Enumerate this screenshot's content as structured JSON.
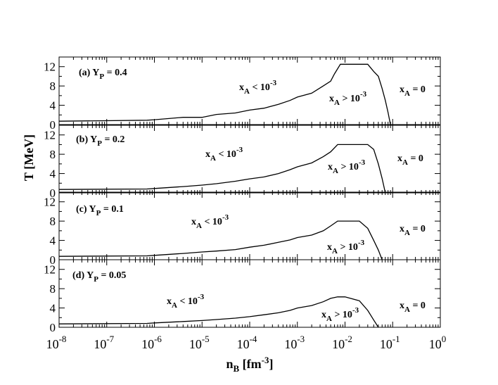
{
  "chart_data": {
    "type": "line",
    "xlabel": "n",
    "xlabel_sub": "B",
    "xlabel_unit": "[fm",
    "xlabel_unit_sup": "-3",
    "xlabel_unit_close": "]",
    "ylabel": "T [MeV]",
    "xscale": "log",
    "xlim": [
      1e-08,
      1
    ],
    "x_tick_base": "10",
    "x_tick_exponents": [
      "-8",
      "-7",
      "-6",
      "-5",
      "-4",
      "-3",
      "-2",
      "-1",
      "0"
    ],
    "line_color": "#000000",
    "panels": [
      {
        "label_prefix": "(a) Y",
        "label_sub": "P",
        "label_suffix": " = 0.4",
        "ylim": [
          0,
          14
        ],
        "yticks": [
          "0",
          "4",
          "8",
          "12"
        ],
        "annotations": {
          "low": {
            "main": "x",
            "sub": "A",
            "rel": " < 10",
            "sup": "-3"
          },
          "mid": {
            "main": "x",
            "sub": "A",
            "rel": " > 10",
            "sup": "-3"
          },
          "zero": {
            "main": "x",
            "sub": "A",
            "rel": " = 0",
            "sup": ""
          }
        },
        "series": {
          "x": [
            1e-08,
            7e-07,
            1e-06,
            4e-06,
            1e-05,
            2e-05,
            5e-05,
            0.0001,
            0.0002,
            0.0004,
            0.0007,
            0.001,
            0.002,
            0.0035,
            0.005,
            0.006,
            0.008,
            0.01,
            0.015,
            0.02,
            0.03,
            0.04,
            0.05,
            0.06,
            0.07,
            0.08,
            0.09
          ],
          "y": [
            0.7,
            0.9,
            1.0,
            1.5,
            1.5,
            2.1,
            2.4,
            3.0,
            3.4,
            4.2,
            5.0,
            5.7,
            6.5,
            8.0,
            9.0,
            10.5,
            12.5,
            12.5,
            12.5,
            12.5,
            12.5,
            11.0,
            10.0,
            7.5,
            5.0,
            2.5,
            0.0
          ]
        }
      },
      {
        "label_prefix": "(b) Y",
        "label_sub": "P",
        "label_suffix": " = 0.2",
        "ylim": [
          0,
          14
        ],
        "yticks": [
          "0",
          "4",
          "8",
          "12"
        ],
        "annotations": {
          "low": {
            "main": "x",
            "sub": "A",
            "rel": " < 10",
            "sup": "-3"
          },
          "mid": {
            "main": "x",
            "sub": "A",
            "rel": " > 10",
            "sup": "-3"
          },
          "zero": {
            "main": "x",
            "sub": "A",
            "rel": " = 0",
            "sup": ""
          }
        },
        "series": {
          "x": [
            1e-08,
            7e-07,
            1e-06,
            4e-06,
            1e-05,
            2e-05,
            5e-05,
            0.0001,
            0.0002,
            0.0004,
            0.0007,
            0.001,
            0.002,
            0.0035,
            0.005,
            0.007,
            0.01,
            0.02,
            0.03,
            0.04,
            0.05,
            0.06,
            0.07
          ],
          "y": [
            0.7,
            0.8,
            0.9,
            1.3,
            1.6,
            1.9,
            2.4,
            2.9,
            3.3,
            4.0,
            4.8,
            5.4,
            6.2,
            7.5,
            8.5,
            10.0,
            10.0,
            10.0,
            10.0,
            9.0,
            6.0,
            3.0,
            0.0
          ]
        }
      },
      {
        "label_prefix": "(c) Y",
        "label_sub": "P",
        "label_suffix": " = 0.1",
        "ylim": [
          0,
          14
        ],
        "yticks": [
          "0",
          "4",
          "8",
          "12"
        ],
        "annotations": {
          "low": {
            "main": "x",
            "sub": "A",
            "rel": " < 10",
            "sup": "-3"
          },
          "mid": {
            "main": "x",
            "sub": "A",
            "rel": " > 10",
            "sup": "-3"
          },
          "zero": {
            "main": "x",
            "sub": "A",
            "rel": " = 0",
            "sup": ""
          }
        },
        "series": {
          "x": [
            1e-08,
            7e-07,
            1e-06,
            4e-06,
            1e-05,
            2e-05,
            5e-05,
            0.0001,
            0.0002,
            0.0004,
            0.0007,
            0.001,
            0.002,
            0.0035,
            0.005,
            0.007,
            0.01,
            0.02,
            0.03,
            0.04,
            0.05,
            0.06
          ],
          "y": [
            0.7,
            0.8,
            0.9,
            1.3,
            1.6,
            1.8,
            2.1,
            2.6,
            3.0,
            3.6,
            4.1,
            4.6,
            5.1,
            6.0,
            7.0,
            8.0,
            8.0,
            8.0,
            6.5,
            4.0,
            2.0,
            0.0
          ]
        }
      },
      {
        "label_prefix": "(d) Y",
        "label_sub": "P",
        "label_suffix": " = 0.05",
        "ylim": [
          0,
          14
        ],
        "yticks": [
          "0",
          "4",
          "8",
          "12"
        ],
        "annotations": {
          "low": {
            "main": "x",
            "sub": "A",
            "rel": " < 10",
            "sup": "-3"
          },
          "mid": {
            "main": "x",
            "sub": "A",
            "rel": " > 10",
            "sup": "-3"
          },
          "zero": {
            "main": "x",
            "sub": "A",
            "rel": " = 0",
            "sup": ""
          }
        },
        "series": {
          "x": [
            1e-08,
            7e-07,
            1e-06,
            4e-06,
            1e-05,
            2e-05,
            5e-05,
            0.0001,
            0.0002,
            0.0004,
            0.0007,
            0.001,
            0.002,
            0.0035,
            0.005,
            0.007,
            0.01,
            0.02,
            0.03,
            0.04,
            0.05
          ],
          "y": [
            0.7,
            0.8,
            0.9,
            1.2,
            1.4,
            1.6,
            1.9,
            2.2,
            2.6,
            3.0,
            3.5,
            4.0,
            4.5,
            5.3,
            6.0,
            6.3,
            6.3,
            5.5,
            3.5,
            1.5,
            0.0
          ]
        }
      }
    ]
  }
}
